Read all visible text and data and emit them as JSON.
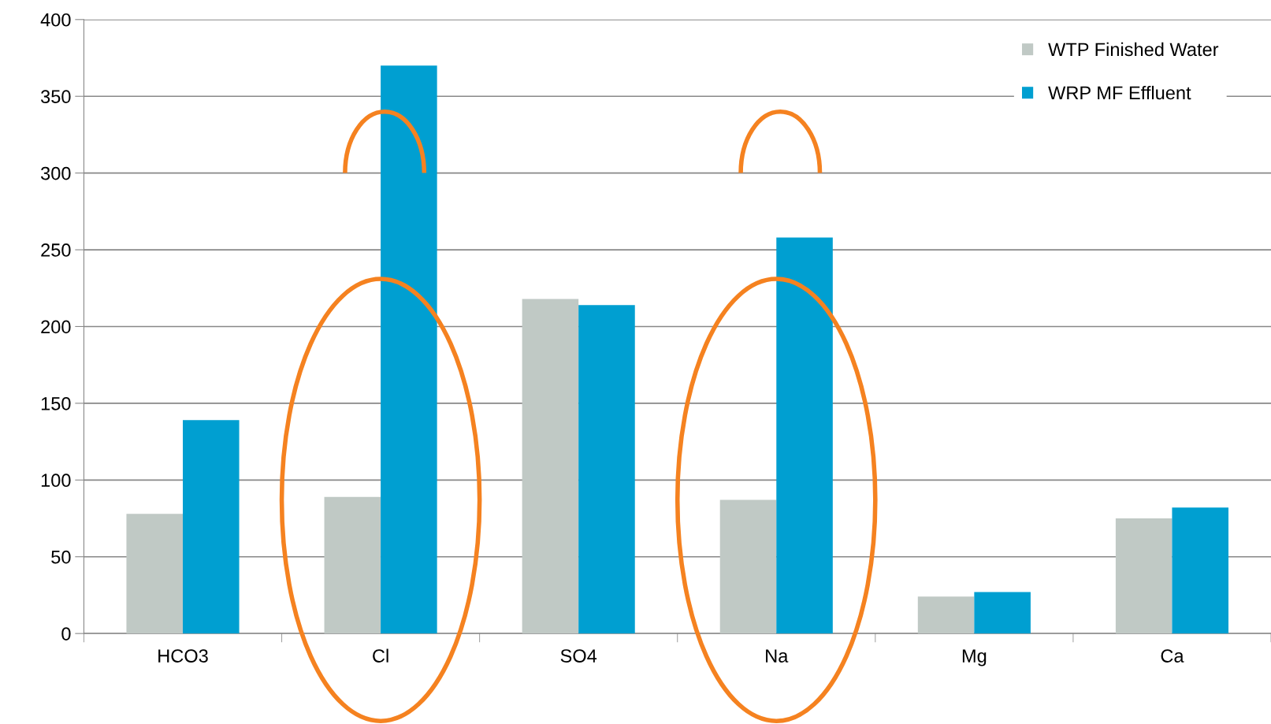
{
  "chart_data": {
    "type": "bar",
    "categories": [
      "HCO3",
      "Cl",
      "SO4",
      "Na",
      "Mg",
      "Ca"
    ],
    "series": [
      {
        "name": "WTP Finished Water",
        "color": "#c0c9c5",
        "values": [
          78,
          89,
          218,
          87,
          24,
          75
        ]
      },
      {
        "name": "WRP MF Effluent",
        "color": "#009fd1",
        "values": [
          139,
          370,
          214,
          258,
          27,
          82
        ]
      }
    ],
    "ylim": [
      0,
      400
    ],
    "yticks": [
      0,
      50,
      100,
      150,
      200,
      250,
      300,
      350,
      400
    ],
    "grid": "y",
    "legend": "top right"
  }
}
